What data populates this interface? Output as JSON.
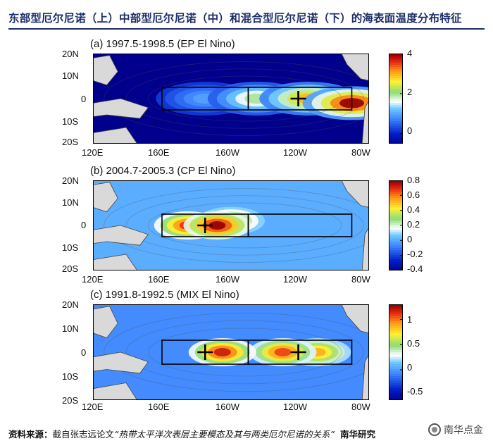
{
  "header": {
    "title": "东部型厄尔尼诺（上）中部型厄尔尼诺（中）和混合型厄尔尼诺（下）的海表面温度分布特征"
  },
  "chart_data": [
    {
      "type": "heatmap",
      "title": "(a) 1997.5-1998.5 (EP El Nino)",
      "lat_ticks": [
        "20N",
        "10N",
        "0",
        "10S",
        "20S"
      ],
      "lon_ticks": [
        "120E",
        "160E",
        "160W",
        "120W",
        "80W"
      ],
      "lon_range": [
        120,
        280
      ],
      "lat_range": [
        -20,
        20
      ],
      "colorbar": {
        "ticks": [
          "4",
          "2",
          "0"
        ],
        "tick_values": [
          4,
          2,
          0
        ],
        "range": [
          -0.5,
          4
        ]
      },
      "boxes": [
        {
          "lon": [
            160,
            210
          ],
          "lat": [
            -5,
            5
          ]
        },
        {
          "lon": [
            210,
            270
          ],
          "lat": [
            -5,
            5
          ]
        }
      ],
      "markers": [
        {
          "lon": 239,
          "lat": 0
        }
      ],
      "anomaly_centers": [
        {
          "lon": 270,
          "lat": -2,
          "value": 4.0
        },
        {
          "lon": 245,
          "lat": 0,
          "value": 3.0
        },
        {
          "lon": 215,
          "lat": 0,
          "value": 2.0
        },
        {
          "lon": 185,
          "lat": 0,
          "value": 1.0
        }
      ]
    },
    {
      "type": "heatmap",
      "title": "(b) 2004.7-2005.3 (CP El Nino)",
      "lat_ticks": [
        "20N",
        "10N",
        "0",
        "10S",
        "20S"
      ],
      "lon_ticks": [
        "120E",
        "160E",
        "160W",
        "120W",
        "80W"
      ],
      "lon_range": [
        120,
        280
      ],
      "lat_range": [
        -20,
        20
      ],
      "colorbar": {
        "ticks": [
          "0.8",
          "0.6",
          "0.4",
          "0.2",
          "0",
          "-0.2",
          "-0.4"
        ],
        "tick_values": [
          0.8,
          0.6,
          0.4,
          0.2,
          0,
          -0.2,
          -0.4
        ],
        "range": [
          -0.4,
          0.8
        ]
      },
      "boxes": [
        {
          "lon": [
            160,
            210
          ],
          "lat": [
            -5,
            5
          ]
        },
        {
          "lon": [
            210,
            270
          ],
          "lat": [
            -5,
            5
          ]
        }
      ],
      "markers": [
        {
          "lon": 185,
          "lat": 0
        }
      ],
      "anomaly_centers": [
        {
          "lon": 192,
          "lat": 0,
          "value": 0.8
        },
        {
          "lon": 175,
          "lat": 0,
          "value": 0.7
        },
        {
          "lon": 200,
          "lat": 2,
          "value": 0.4
        }
      ]
    },
    {
      "type": "heatmap",
      "title": "(c) 1991.8-1992.5 (MIX El Nino)",
      "lat_ticks": [
        "20N",
        "10N",
        "0",
        "10S",
        "20S"
      ],
      "lon_ticks": [
        "120E",
        "160E",
        "160W",
        "120W",
        "80W"
      ],
      "lon_range": [
        120,
        280
      ],
      "lat_range": [
        -20,
        20
      ],
      "colorbar": {
        "ticks": [
          "1",
          "0.5",
          "0",
          "-0.5"
        ],
        "tick_values": [
          1,
          0.5,
          0,
          -0.5
        ],
        "range": [
          -0.6,
          1.3
        ]
      },
      "boxes": [
        {
          "lon": [
            160,
            210
          ],
          "lat": [
            -5,
            5
          ]
        },
        {
          "lon": [
            210,
            270
          ],
          "lat": [
            -5,
            5
          ]
        }
      ],
      "markers": [
        {
          "lon": 185,
          "lat": 0
        },
        {
          "lon": 239,
          "lat": 0
        }
      ],
      "anomaly_centers": [
        {
          "lon": 195,
          "lat": 0,
          "value": 1.2
        },
        {
          "lon": 230,
          "lat": 0,
          "value": 1.1
        },
        {
          "lon": 250,
          "lat": 0,
          "value": 0.9
        }
      ]
    }
  ],
  "footer": {
    "source_label": "资料来源：",
    "source_text": "截自张志远论文",
    "paper_title": "“热带太平洋次表层主要模态及其与两类厄尔尼诺的关系”",
    "org": "南华研究"
  },
  "watermark": {
    "text": "南华点金",
    "icon": "wechat-logo-icon"
  }
}
